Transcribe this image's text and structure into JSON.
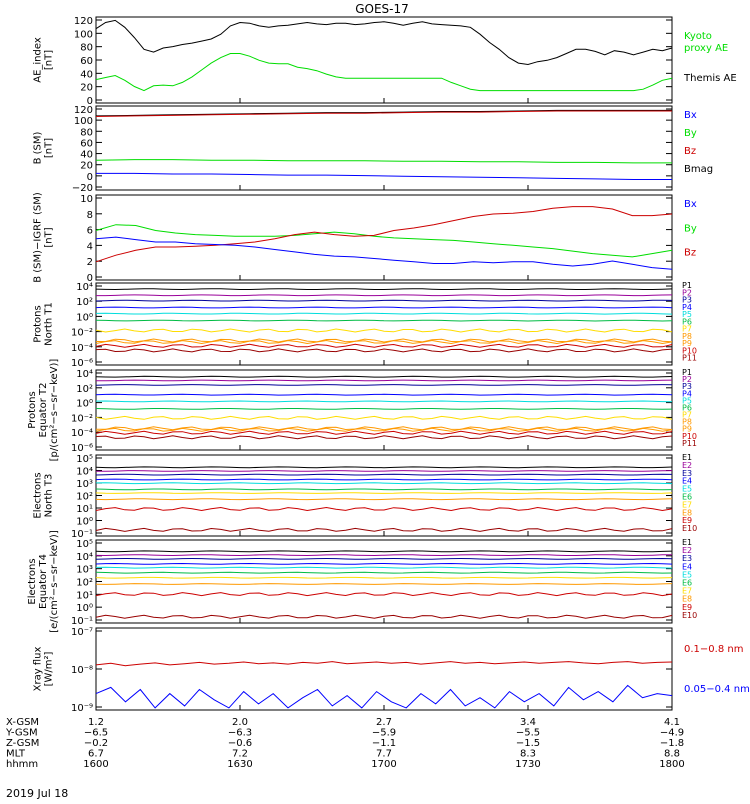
{
  "title": "GOES-17",
  "date_label": "2019 Jul 18",
  "colors": {
    "black": "#000000",
    "red": "#ff0000",
    "darkred": "#cc0000",
    "green": "#00dd00",
    "blue": "#0000ff",
    "orange": "#ff9900",
    "yellow": "#ffdd00",
    "cyan": "#00dddd",
    "teal": "#00bbaa",
    "purple": "#990099",
    "navy": "#000099",
    "violet": "#aa00aa"
  },
  "chart_data": [
    {
      "id": "ae",
      "type": "line",
      "ylabel": "AE_index\n[nT]",
      "yticks": [
        "120",
        "100",
        "80",
        "60",
        "40",
        "20",
        "0"
      ],
      "ylim": [
        0,
        125
      ],
      "scale": "linear",
      "legend": [
        {
          "text": "Kyoto",
          "color": "#00dd00"
        },
        {
          "text": "proxy AE",
          "color": "#00dd00"
        },
        {
          "text": "Themis AE",
          "color": "#000000"
        }
      ],
      "series": [
        {
          "name": "Themis AE",
          "color": "#000000",
          "values": [
            108,
            117,
            120,
            110,
            95,
            78,
            74,
            80,
            82,
            85,
            87,
            90,
            93,
            100,
            112,
            117,
            116,
            112,
            110,
            112,
            113,
            115,
            117,
            115,
            114,
            116,
            116,
            114,
            115,
            117,
            118,
            116,
            113,
            116,
            118,
            115,
            114,
            113,
            112,
            110,
            100,
            88,
            78,
            66,
            58,
            56,
            60,
            62,
            66,
            72,
            78,
            78,
            75,
            70,
            76,
            74,
            70,
            74,
            78,
            76,
            80
          ]
        },
        {
          "name": "Kyoto proxy AE",
          "color": "#00dd00",
          "values": [
            34,
            37,
            40,
            33,
            24,
            18,
            25,
            26,
            25,
            30,
            38,
            48,
            58,
            66,
            72,
            72,
            68,
            62,
            58,
            57,
            57,
            52,
            50,
            47,
            42,
            38,
            36,
            36,
            36,
            36,
            36,
            36,
            36,
            36,
            36,
            36,
            36,
            30,
            25,
            20,
            18,
            18,
            18,
            18,
            18,
            18,
            18,
            18,
            18,
            18,
            18,
            18,
            18,
            18,
            18,
            18,
            18,
            20,
            26,
            33,
            36
          ]
        }
      ]
    },
    {
      "id": "bsm",
      "type": "line",
      "ylabel": "B (SM)\n[nT]",
      "yticks": [
        "120",
        "100",
        "80",
        "60",
        "40",
        "20",
        "0",
        "−20"
      ],
      "ylim": [
        -27,
        125
      ],
      "scale": "linear",
      "legend": [
        {
          "text": "Bx",
          "color": "#0000ff"
        },
        {
          "text": "By",
          "color": "#00dd00"
        },
        {
          "text": "Bz",
          "color": "#cc0000"
        },
        {
          "text": "Bmag",
          "color": "#000000"
        }
      ],
      "series": [
        {
          "name": "Bmag",
          "color": "#000000",
          "values": [
            107,
            108,
            109,
            110,
            111,
            112,
            113,
            113,
            114,
            115,
            115,
            116,
            117,
            117,
            117,
            117
          ]
        },
        {
          "name": "Bz",
          "color": "#cc0000",
          "values": [
            106,
            107,
            108,
            109,
            110,
            111,
            112,
            112,
            113,
            114,
            114,
            115,
            116,
            116,
            116,
            116
          ]
        },
        {
          "name": "By",
          "color": "#00dd00",
          "values": [
            27,
            28,
            28,
            27,
            27,
            26,
            26,
            26,
            25,
            25,
            24,
            24,
            23,
            23,
            22,
            22
          ]
        },
        {
          "name": "Bx",
          "color": "#0000ff",
          "values": [
            3,
            3,
            2,
            2,
            1,
            0,
            0,
            -1,
            -2,
            -3,
            -4,
            -5,
            -6,
            -7,
            -8,
            -8
          ]
        }
      ]
    },
    {
      "id": "bdiff",
      "type": "line",
      "ylabel": "B (SM)−IGRF (SM)\n[nT]",
      "yticks": [
        "10",
        "8",
        "6",
        "4",
        "2",
        "0"
      ],
      "ylim": [
        0,
        10.3
      ],
      "scale": "linear",
      "legend": [
        {
          "text": "Bx",
          "color": "#0000ff"
        },
        {
          "text": "By",
          "color": "#00dd00"
        },
        {
          "text": "Bz",
          "color": "#cc0000"
        }
      ],
      "series": [
        {
          "name": "By",
          "color": "#00dd00",
          "values": [
            6.0,
            6.7,
            6.6,
            6.0,
            5.7,
            5.5,
            5.4,
            5.3,
            5.3,
            5.3,
            5.4,
            5.6,
            5.8,
            5.6,
            5.3,
            5.1,
            5.0,
            4.9,
            4.8,
            4.6,
            4.4,
            4.2,
            4.0,
            3.8,
            3.5,
            3.2,
            3.0,
            2.8,
            3.2,
            3.6
          ]
        },
        {
          "name": "Bz",
          "color": "#cc0000",
          "values": [
            2.2,
            3.0,
            3.6,
            4.0,
            4.0,
            4.1,
            4.2,
            4.4,
            4.6,
            5.0,
            5.5,
            5.8,
            5.5,
            5.3,
            5.4,
            6.0,
            6.3,
            6.7,
            7.2,
            7.7,
            8.0,
            8.1,
            8.3,
            8.7,
            8.9,
            8.9,
            8.6,
            7.8,
            7.8,
            8.0
          ]
        },
        {
          "name": "Bx",
          "color": "#0000ff",
          "values": [
            5.0,
            5.2,
            4.9,
            4.6,
            4.6,
            4.4,
            4.3,
            4.2,
            4.0,
            3.7,
            3.4,
            3.1,
            2.9,
            2.8,
            2.6,
            2.4,
            2.2,
            2.0,
            2.0,
            2.2,
            2.1,
            2.2,
            2.2,
            1.9,
            1.7,
            1.9,
            2.3,
            1.9,
            1.5,
            1.3
          ]
        }
      ]
    },
    {
      "id": "p_t1",
      "type": "line",
      "ylabel": "Protons\nNorth T1",
      "yticks": [
        "10⁴",
        "10²",
        "10⁰",
        "10⁻²",
        "10⁻⁴",
        "10⁻⁶"
      ],
      "ylim": [
        -6.5,
        4.2
      ],
      "scale": "log",
      "channels": [
        {
          "name": "P1",
          "color": "#000000",
          "log": 3.4
        },
        {
          "name": "P2",
          "color": "#990099",
          "log": 2.6
        },
        {
          "name": "P3",
          "color": "#000099",
          "log": 1.9
        },
        {
          "name": "P4",
          "color": "#0000ff",
          "log": 1.0
        },
        {
          "name": "P5",
          "color": "#00dddd",
          "log": 0.2
        },
        {
          "name": "P6",
          "color": "#00bb44",
          "log": -0.7
        },
        {
          "name": "P7",
          "color": "#ffdd00",
          "log": -2.0
        },
        {
          "name": "P8",
          "color": "#ff9900",
          "log": -3.3
        },
        {
          "name": "P9",
          "color": "#ff9900",
          "log": -3.5
        },
        {
          "name": "P10",
          "color": "#cc0000",
          "log": -4.0
        },
        {
          "name": "P11",
          "color": "#990000",
          "log": -4.6
        }
      ]
    },
    {
      "id": "p_t2",
      "type": "line",
      "ylabel": "Protons\nEquator T2\n[p/(cm²−s−sr−keV)]",
      "yticks": [
        "10⁴",
        "10²",
        "10⁰",
        "10⁻²",
        "10⁻⁴",
        "10⁻⁶"
      ],
      "ylim": [
        -6.5,
        4.2
      ],
      "scale": "log",
      "channels": [
        {
          "name": "P1",
          "color": "#000000",
          "log": 3.3
        },
        {
          "name": "P2",
          "color": "#990099",
          "log": 2.8
        },
        {
          "name": "P3",
          "color": "#000099",
          "log": 2.2
        },
        {
          "name": "P4",
          "color": "#0000ff",
          "log": 0.9
        },
        {
          "name": "P5",
          "color": "#00dddd",
          "log": 0.0
        },
        {
          "name": "P6",
          "color": "#00bb44",
          "log": -1.0
        },
        {
          "name": "P7",
          "color": "#ffdd00",
          "log": -2.2
        },
        {
          "name": "P8",
          "color": "#ff9900",
          "log": -3.6
        },
        {
          "name": "P9",
          "color": "#ff9900",
          "log": -3.8
        },
        {
          "name": "P10",
          "color": "#cc0000",
          "log": -4.2
        },
        {
          "name": "P11",
          "color": "#990000",
          "log": -4.8
        }
      ]
    },
    {
      "id": "e_t3",
      "type": "line",
      "ylabel": "Electrons\nNorth T3",
      "yticks": [
        "10⁵",
        "10⁴",
        "10³",
        "10²",
        "10¹",
        "10⁰",
        "10⁻¹"
      ],
      "ylim": [
        -1.4,
        5.2
      ],
      "scale": "log",
      "channels": [
        {
          "name": "E1",
          "color": "#000000",
          "log": 4.2
        },
        {
          "name": "E2",
          "color": "#990099",
          "log": 3.9
        },
        {
          "name": "E3",
          "color": "#000099",
          "log": 3.6
        },
        {
          "name": "E4",
          "color": "#0000ff",
          "log": 3.2
        },
        {
          "name": "E5",
          "color": "#00dddd",
          "log": 2.9
        },
        {
          "name": "E6",
          "color": "#00bb44",
          "log": 2.4
        },
        {
          "name": "E7",
          "color": "#ffdd00",
          "log": 2.1
        },
        {
          "name": "E8",
          "color": "#ff9900",
          "log": 1.6
        },
        {
          "name": "E9",
          "color": "#cc0000",
          "log": 0.8
        },
        {
          "name": "E10",
          "color": "#990000",
          "log": -0.9
        }
      ]
    },
    {
      "id": "e_t4",
      "type": "line",
      "ylabel": "Electrons\nEquator T4\n[e/(cm²−s−sr−keV)]",
      "yticks": [
        "10⁵",
        "10⁴",
        "10³",
        "10²",
        "10¹",
        "10⁰",
        "10⁻¹"
      ],
      "ylim": [
        -1.4,
        5.2
      ],
      "scale": "log",
      "channels": [
        {
          "name": "E1",
          "color": "#000000",
          "log": 4.3
        },
        {
          "name": "E2",
          "color": "#990099",
          "log": 4.0
        },
        {
          "name": "E3",
          "color": "#000099",
          "log": 3.7
        },
        {
          "name": "E4",
          "color": "#0000ff",
          "log": 3.3
        },
        {
          "name": "E5",
          "color": "#00dddd",
          "log": 3.0
        },
        {
          "name": "E6",
          "color": "#00bb44",
          "log": 2.6
        },
        {
          "name": "E7",
          "color": "#ffdd00",
          "log": 2.2
        },
        {
          "name": "E8",
          "color": "#ff9900",
          "log": 1.7
        },
        {
          "name": "E9",
          "color": "#cc0000",
          "log": 0.9
        },
        {
          "name": "E10",
          "color": "#990000",
          "log": -0.9
        }
      ]
    },
    {
      "id": "xray",
      "type": "line",
      "ylabel": "Xray flux\n[W/m²]",
      "yticks": [
        "10⁻⁷",
        "10⁻⁸",
        "10⁻⁹"
      ],
      "ylim": [
        -9,
        -7
      ],
      "scale": "log",
      "legend": [
        {
          "text": "0.1−0.8 nm",
          "color": "#cc0000"
        },
        {
          "text": "0.05−0.4 nm",
          "color": "#0000ff"
        }
      ],
      "series": [
        {
          "name": "0.1−0.8 nm",
          "color": "#cc0000",
          "values": [
            -7.9,
            -7.86,
            -7.92,
            -7.88,
            -7.85,
            -7.9,
            -7.87,
            -7.84,
            -7.88,
            -7.86,
            -7.83,
            -7.87,
            -7.85,
            -7.88,
            -7.84,
            -7.86,
            -7.82,
            -7.87,
            -7.85,
            -7.83,
            -7.86,
            -7.84,
            -7.88,
            -7.85,
            -7.82,
            -7.86,
            -7.84,
            -7.87,
            -7.85,
            -7.83,
            -7.86,
            -7.84,
            -7.82,
            -7.85,
            -7.87,
            -7.84,
            -7.82,
            -7.86,
            -7.84,
            -7.83
          ]
        },
        {
          "name": "0.05−0.4 nm",
          "color": "#0000ff",
          "values": [
            -8.6,
            -8.45,
            -8.8,
            -8.5,
            -8.95,
            -8.6,
            -8.9,
            -8.5,
            -8.75,
            -8.95,
            -8.55,
            -8.85,
            -8.6,
            -8.95,
            -8.7,
            -8.5,
            -8.9,
            -8.65,
            -8.95,
            -8.55,
            -8.8,
            -8.95,
            -8.6,
            -8.85,
            -8.5,
            -8.9,
            -8.7,
            -8.95,
            -8.55,
            -8.8,
            -8.6,
            -8.9,
            -8.45,
            -8.75,
            -8.55,
            -8.8,
            -8.4,
            -8.7,
            -8.6,
            -8.65
          ]
        }
      ]
    }
  ],
  "x_axis": {
    "rows": [
      {
        "label": "X-GSM",
        "values": [
          "1.2",
          "2.0",
          "2.7",
          "3.4",
          "4.1"
        ]
      },
      {
        "label": "Y-GSM",
        "values": [
          "−6.5",
          "−6.3",
          "−5.9",
          "−5.5",
          "−4.9"
        ]
      },
      {
        "label": "Z-GSM",
        "values": [
          "−0.2",
          "−0.6",
          "−1.1",
          "−1.5",
          "−1.8"
        ]
      },
      {
        "label": "MLT",
        "values": [
          "6.7",
          "7.2",
          "7.7",
          "8.3",
          "8.8"
        ]
      },
      {
        "label": "hhmm",
        "values": [
          "1600",
          "1630",
          "1700",
          "1730",
          "1800"
        ]
      }
    ]
  }
}
